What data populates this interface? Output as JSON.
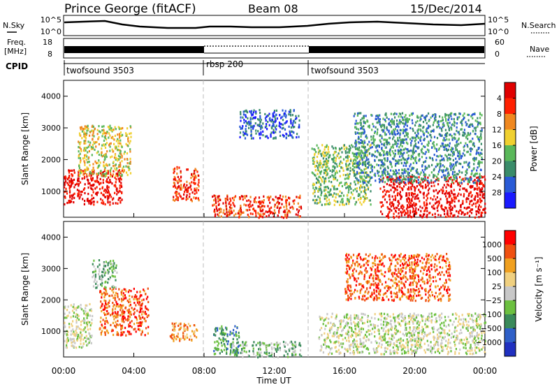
{
  "header": {
    "title": "Prince George (fitACF)",
    "beam": "Beam 08",
    "date": "15/Dec/2014"
  },
  "status_panels": {
    "nsky": {
      "label": "N.Sky",
      "tick_top": "10^5",
      "tick_bottom": "10^0",
      "right_label": "N.Search",
      "right_tick_top": "10^5",
      "right_tick_bottom": "10^0"
    },
    "freq": {
      "label_line1": "Freq.",
      "label_line2": "[MHz]",
      "tick_top": "18",
      "tick_bottom": "8",
      "right_label": "Nave",
      "right_tick_top": "60",
      "right_tick_bottom": "0"
    },
    "cpid": {
      "label": "CPID",
      "segments": [
        {
          "label": "twofsound 3503",
          "start": "00:00",
          "end": "08:00"
        },
        {
          "label": "rbsp 200",
          "start": "08:00",
          "end": "14:00"
        },
        {
          "label": "twofsound 3503",
          "start": "14:00",
          "end": "24:00"
        }
      ]
    }
  },
  "chart_data": [
    {
      "type": "heatmap",
      "title": "",
      "ylabel": "Slant Range [km]",
      "xlabel": "",
      "x_range_hours": [
        0,
        24
      ],
      "ylim": [
        180,
        4500
      ],
      "y_ticks": [
        1000,
        2000,
        3000,
        4000
      ],
      "x_ticks": [
        "00:00",
        "04:00",
        "08:00",
        "12:00",
        "16:00",
        "20:00",
        "00:00"
      ],
      "colorbar": {
        "label": "Power [dB]",
        "ticks": [
          "4",
          "8",
          "12",
          "16",
          "20",
          "24",
          "28"
        ],
        "colors": [
          "#1a1aff",
          "#2a5bd6",
          "#3a8c6a",
          "#5ab85a",
          "#f0d030",
          "#f08820",
          "#ff2000",
          "#e00000"
        ]
      },
      "regions": [
        {
          "t0": 0.0,
          "t1": 3.3,
          "r0": 600,
          "r1": 1700,
          "level": 7
        },
        {
          "t0": 0.8,
          "t1": 3.8,
          "r0": 1500,
          "r1": 3100,
          "level": 4
        },
        {
          "t0": 6.2,
          "t1": 7.7,
          "r0": 700,
          "r1": 1800,
          "level": 6
        },
        {
          "t0": 8.4,
          "t1": 13.5,
          "r0": 200,
          "r1": 900,
          "level": 6
        },
        {
          "t0": 10.0,
          "t1": 13.4,
          "r0": 2700,
          "r1": 3600,
          "level": 1
        },
        {
          "t0": 14.1,
          "t1": 17.5,
          "r0": 600,
          "r1": 2500,
          "level": 3
        },
        {
          "t0": 18.0,
          "t1": 24.0,
          "r0": 200,
          "r1": 1500,
          "level": 7
        },
        {
          "t0": 16.5,
          "t1": 23.8,
          "r0": 1300,
          "r1": 3500,
          "level": 2
        }
      ]
    },
    {
      "type": "heatmap",
      "title": "",
      "ylabel": "Slant Range [km]",
      "xlabel": "Time UT",
      "x_range_hours": [
        0,
        24
      ],
      "ylim": [
        180,
        4500
      ],
      "y_ticks": [
        1000,
        2000,
        3000,
        4000
      ],
      "x_ticks": [
        "00:00",
        "04:00",
        "08:00",
        "12:00",
        "16:00",
        "20:00",
        "00:00"
      ],
      "colorbar": {
        "label": "Velocity [m s⁻¹]",
        "ticks": [
          "1000",
          "500",
          "100",
          "25",
          "−25",
          "−100",
          "−500",
          "−1000"
        ],
        "colors": [
          "#2030c0",
          "#2f60c8",
          "#3a8a5a",
          "#6cc040",
          "#c8c8c8",
          "#f0d080",
          "#f0a020",
          "#f05010",
          "#ff0000"
        ]
      },
      "regions": [
        {
          "t0": 0.0,
          "t1": 1.6,
          "r0": 500,
          "r1": 1900,
          "level": 4
        },
        {
          "t0": 2.0,
          "t1": 4.8,
          "r0": 900,
          "r1": 2400,
          "level": 7
        },
        {
          "t0": 1.6,
          "t1": 3.0,
          "r0": 2400,
          "r1": 3300,
          "level": 3
        },
        {
          "t0": 6.0,
          "t1": 7.6,
          "r0": 700,
          "r1": 1300,
          "level": 6
        },
        {
          "t0": 8.5,
          "t1": 10.0,
          "r0": 300,
          "r1": 1200,
          "level": 2
        },
        {
          "t0": 9.5,
          "t1": 13.5,
          "r0": 200,
          "r1": 700,
          "level": 3
        },
        {
          "t0": 14.5,
          "t1": 24.0,
          "r0": 300,
          "r1": 1600,
          "level": 4
        },
        {
          "t0": 16.0,
          "t1": 22.0,
          "r0": 2000,
          "r1": 3500,
          "level": 7
        }
      ]
    }
  ]
}
